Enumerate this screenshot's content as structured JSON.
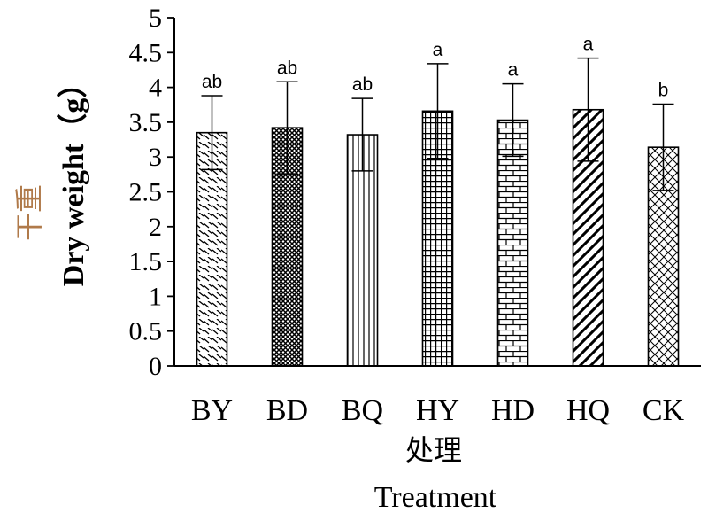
{
  "chart_data": {
    "type": "bar",
    "categories": [
      "BY",
      "BD",
      "BQ",
      "HY",
      "HD",
      "HQ",
      "CK"
    ],
    "values": [
      3.35,
      3.42,
      3.32,
      3.66,
      3.53,
      3.68,
      3.14
    ],
    "error": [
      0.53,
      0.66,
      0.52,
      0.68,
      0.52,
      0.74,
      0.62
    ],
    "significance": [
      "ab",
      "ab",
      "ab",
      "a",
      "a",
      "a",
      "b"
    ],
    "patterns": [
      "diag-dash",
      "crosshatch-dense",
      "vertical-lines",
      "grid",
      "brick",
      "diag-thick",
      "crosshatch-open"
    ],
    "ylim": [
      0,
      5
    ],
    "yticks": [
      "0",
      "0.5",
      "1",
      "1.5",
      "2",
      "2.5",
      "3",
      "3.5",
      "4",
      "4.5",
      "5"
    ],
    "xlabel_cn": "处理",
    "xlabel": "Treatment",
    "ylabel_cn": "干重",
    "ylabel": "Dry weight（g）",
    "ylabel_cn_color": "#b07a4a",
    "bar_color": "#000000",
    "grid": false
  }
}
